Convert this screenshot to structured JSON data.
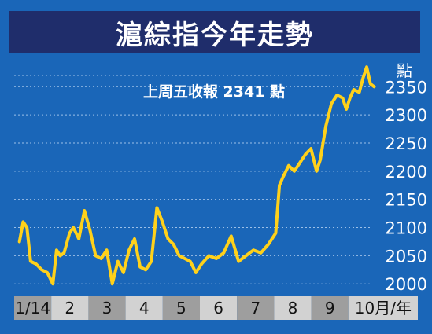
{
  "title": "滬綜指今年走勢",
  "chart_data": {
    "type": "line",
    "title": "滬綜指今年走勢",
    "unit": "點",
    "annotation": "上周五收報 2341 點",
    "xlabel": "",
    "ylabel": "",
    "ylim": [
      1985,
      2395
    ],
    "yticks": [
      2000,
      2050,
      2100,
      2150,
      2200,
      2250,
      2300,
      2350
    ],
    "grid": true,
    "months": [
      "1/14",
      "2",
      "3",
      "4",
      "5",
      "6",
      "7",
      "8",
      "9",
      "10月/年"
    ],
    "line_color": "#ffd11a",
    "series": [
      {
        "x": [
          0.1,
          0.2,
          0.3,
          0.4,
          0.55,
          0.7,
          0.85,
          1.0,
          1.1,
          1.2,
          1.3,
          1.45,
          1.55,
          1.7,
          1.85,
          2.0,
          2.15,
          2.3,
          2.45,
          2.6,
          2.75,
          2.9,
          3.05,
          3.2,
          3.35,
          3.5,
          3.65,
          3.8,
          3.95,
          4.1,
          4.25,
          4.4,
          4.55,
          4.7,
          4.85,
          5.0,
          5.2,
          5.4,
          5.6,
          5.8,
          6.0,
          6.2,
          6.4,
          6.6,
          6.8,
          7.0,
          7.1,
          7.2,
          7.35,
          7.5,
          7.65,
          7.8,
          7.95,
          8.1,
          8.2,
          8.35,
          8.5,
          8.65,
          8.8,
          8.9,
          9.0,
          9.1,
          9.25,
          9.35,
          9.45,
          9.55,
          9.65
        ],
        "y": [
          2075,
          2110,
          2100,
          2040,
          2035,
          2025,
          2020,
          2000,
          2060,
          2050,
          2055,
          2090,
          2100,
          2080,
          2130,
          2095,
          2050,
          2045,
          2060,
          2000,
          2040,
          2020,
          2060,
          2080,
          2030,
          2025,
          2040,
          2135,
          2110,
          2080,
          2070,
          2050,
          2045,
          2040,
          2020,
          2035,
          2050,
          2045,
          2055,
          2085,
          2040,
          2050,
          2060,
          2055,
          2070,
          2090,
          2175,
          2190,
          2210,
          2200,
          2215,
          2230,
          2240,
          2200,
          2220,
          2280,
          2320,
          2335,
          2330,
          2310,
          2330,
          2345,
          2340,
          2365,
          2385,
          2355,
          2350
        ]
      }
    ]
  }
}
